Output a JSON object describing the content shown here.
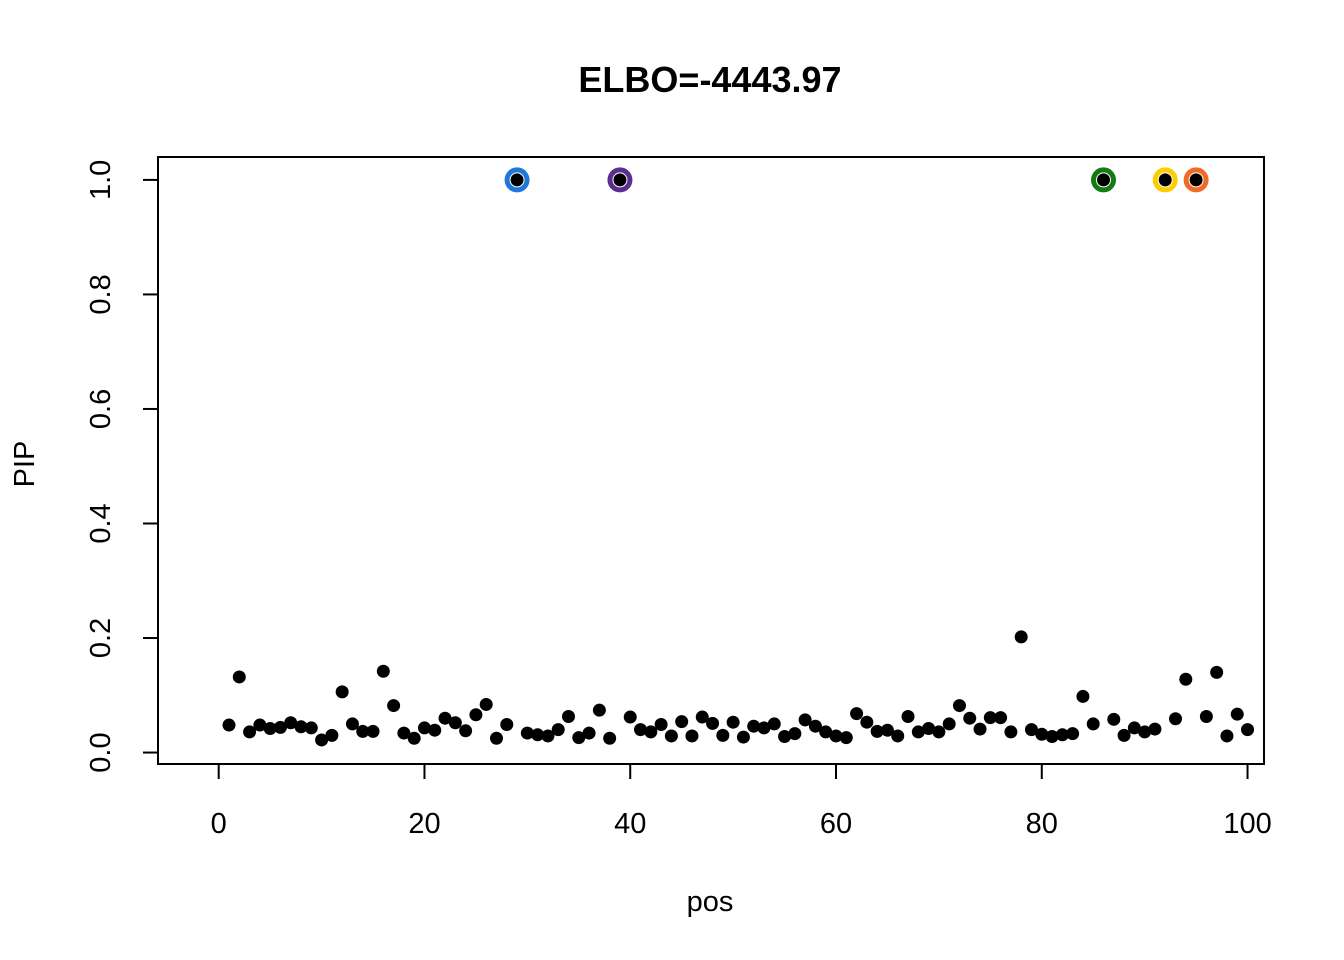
{
  "chart_data": {
    "type": "scatter",
    "title": "ELBO=-4443.97",
    "xlabel": "pos",
    "ylabel": "PIP",
    "xlim": [
      -5.9,
      101.6
    ],
    "ylim": [
      -0.02,
      1.04
    ],
    "x_ticks": [
      0,
      20,
      40,
      60,
      80,
      100
    ],
    "x_tick_labels": [
      "0",
      "20",
      "40",
      "60",
      "80",
      "100"
    ],
    "y_ticks": [
      0.0,
      0.2,
      0.4,
      0.6,
      0.8,
      1.0
    ],
    "y_tick_labels": [
      "0.0",
      "0.2",
      "0.4",
      "0.6",
      "0.8",
      "1.0"
    ],
    "grid": false,
    "legend": "none",
    "point_color": "#000000",
    "series": [
      {
        "x": [
          1,
          2,
          3,
          4,
          5,
          6,
          7,
          8,
          9,
          10,
          11,
          12,
          13,
          14,
          15,
          16,
          17,
          18,
          19,
          20,
          21,
          22,
          23,
          24,
          25,
          26,
          27,
          28,
          29,
          30,
          31,
          32,
          33,
          34,
          35,
          36,
          37,
          38,
          39,
          40,
          41,
          42,
          43,
          44,
          45,
          46,
          47,
          48,
          49,
          50,
          51,
          52,
          53,
          54,
          55,
          56,
          57,
          58,
          59,
          60,
          61,
          62,
          63,
          64,
          65,
          66,
          67,
          68,
          69,
          70,
          71,
          72,
          73,
          74,
          75,
          76,
          77,
          78,
          79,
          80,
          81,
          82,
          83,
          84,
          85,
          86,
          87,
          88,
          89,
          90,
          91,
          92,
          93,
          94,
          95,
          96,
          97,
          98,
          99,
          100
        ],
        "values": [
          0.048,
          0.132,
          0.036,
          0.048,
          0.042,
          0.044,
          0.052,
          0.045,
          0.043,
          0.022,
          0.03,
          0.106,
          0.05,
          0.037,
          0.037,
          0.142,
          0.082,
          0.034,
          0.025,
          0.043,
          0.039,
          0.06,
          0.052,
          0.038,
          0.066,
          0.084,
          0.025,
          0.049,
          1.0,
          0.034,
          0.031,
          0.029,
          0.04,
          0.063,
          0.026,
          0.034,
          0.074,
          0.025,
          1.0,
          0.062,
          0.04,
          0.036,
          0.049,
          0.029,
          0.054,
          0.029,
          0.062,
          0.051,
          0.03,
          0.053,
          0.027,
          0.046,
          0.043,
          0.05,
          0.028,
          0.033,
          0.057,
          0.046,
          0.036,
          0.029,
          0.026,
          0.068,
          0.053,
          0.037,
          0.039,
          0.029,
          0.063,
          0.036,
          0.042,
          0.036,
          0.05,
          0.082,
          0.06,
          0.041,
          0.061,
          0.061,
          0.036,
          0.202,
          0.04,
          0.032,
          0.028,
          0.031,
          0.033,
          0.098,
          0.05,
          1.0,
          0.058,
          0.03,
          0.043,
          0.036,
          0.041,
          1.0,
          0.059,
          0.128,
          1.0,
          0.063,
          0.14,
          0.029,
          0.067,
          0.04
        ]
      }
    ],
    "highlighted_points": [
      {
        "x": 29,
        "value": 1.0,
        "ring_color": "#1f78d9"
      },
      {
        "x": 39,
        "value": 1.0,
        "ring_color": "#5c2e91"
      },
      {
        "x": 86,
        "value": 1.0,
        "ring_color": "#137a14"
      },
      {
        "x": 92,
        "value": 1.0,
        "ring_color": "#ffcc00"
      },
      {
        "x": 95,
        "value": 1.0,
        "ring_color": "#f26b21"
      }
    ]
  }
}
